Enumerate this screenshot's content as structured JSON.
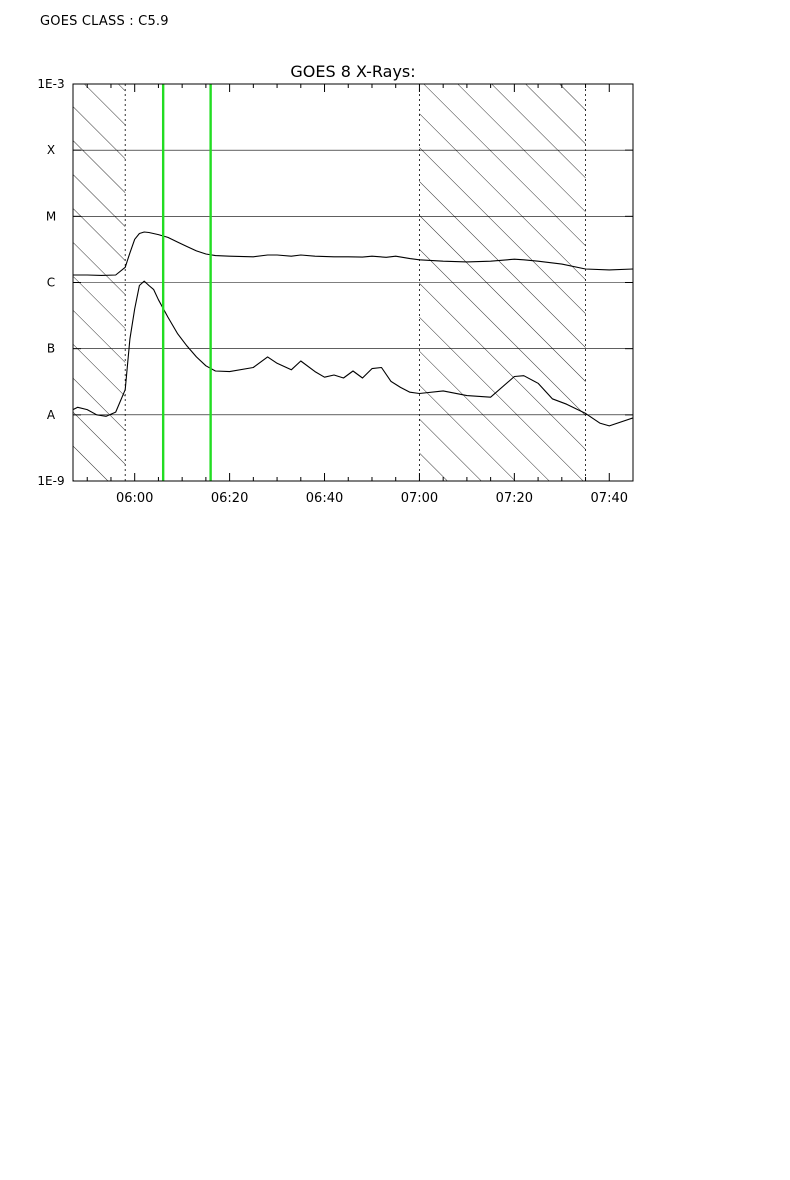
{
  "header": {
    "goes_class": "GOES CLASS : C5.9"
  },
  "chart_data": {
    "type": "line",
    "title": "GOES 8 X-Rays:",
    "xlabel": "",
    "ylabel": "",
    "y_scale": "log",
    "ylim": [
      1e-09,
      0.001
    ],
    "xlim": [
      "05:47",
      "07:45"
    ],
    "x_tick_labels": [
      "06:00",
      "06:20",
      "06:40",
      "07:00",
      "07:20",
      "07:40"
    ],
    "x_ticks_minutes": [
      0,
      20,
      40,
      60,
      80,
      100
    ],
    "y_tick_labels": [
      {
        "label": "1E-3",
        "value": 0.001
      },
      {
        "label": "X",
        "value": 0.0001
      },
      {
        "label": "M",
        "value": 1e-05
      },
      {
        "label": "C",
        "value": 1e-06
      },
      {
        "label": "B",
        "value": 1e-07
      },
      {
        "label": "A",
        "value": 1e-08
      },
      {
        "label": "1E-9",
        "value": 1e-09
      }
    ],
    "grid_levels": [
      0.0001,
      1e-05,
      1e-06,
      1e-07,
      1e-08
    ],
    "hatched_intervals": [
      [
        "05:47",
        "05:58"
      ],
      [
        "07:00",
        "07:35"
      ]
    ],
    "event_markers": {
      "color": "#22dd22",
      "times": [
        "06:06",
        "06:16"
      ]
    },
    "series": [
      {
        "x": [
          "05:47",
          "05:50",
          "05:53",
          "05:56",
          "05:58",
          "05:59",
          "06:00",
          "06:01",
          "06:02",
          "06:03",
          "06:05",
          "06:07",
          "06:09",
          "06:11",
          "06:13",
          "06:15",
          "06:17",
          "06:20",
          "06:25",
          "06:28",
          "06:30",
          "06:33",
          "06:35",
          "06:38",
          "06:42",
          "06:45",
          "06:48",
          "06:50",
          "06:53",
          "06:55",
          "06:58",
          "07:00",
          "07:05",
          "07:10",
          "07:15",
          "07:20",
          "07:22",
          "07:25",
          "07:30",
          "07:35",
          "07:40",
          "07:45"
        ],
        "values": [
          1.3e-06,
          1.3e-06,
          1.28e-06,
          1.3e-06,
          1.7e-06,
          2.8e-06,
          4.5e-06,
          5.5e-06,
          5.8e-06,
          5.7e-06,
          5.3e-06,
          4.8e-06,
          4.1e-06,
          3.5e-06,
          3e-06,
          2.7e-06,
          2.55e-06,
          2.5e-06,
          2.45e-06,
          2.6e-06,
          2.6e-06,
          2.5e-06,
          2.6e-06,
          2.5e-06,
          2.45e-06,
          2.45e-06,
          2.42e-06,
          2.5e-06,
          2.4e-06,
          2.5e-06,
          2.3e-06,
          2.2e-06,
          2.1e-06,
          2.05e-06,
          2.1e-06,
          2.25e-06,
          2.2e-06,
          2.1e-06,
          1.9e-06,
          1.6e-06,
          1.55e-06,
          1.6e-06
        ]
      },
      {
        "x": [
          "05:47",
          "05:48",
          "05:50",
          "05:52",
          "05:54",
          "05:56",
          "05:58",
          "05:59",
          "06:00",
          "06:01",
          "06:02",
          "06:03",
          "06:04",
          "06:05",
          "06:07",
          "06:09",
          "06:11",
          "06:13",
          "06:15",
          "06:17",
          "06:20",
          "06:25",
          "06:28",
          "06:30",
          "06:33",
          "06:35",
          "06:38",
          "06:40",
          "06:42",
          "06:44",
          "06:46",
          "06:48",
          "06:50",
          "06:52",
          "06:54",
          "06:56",
          "06:58",
          "07:00",
          "07:05",
          "07:10",
          "07:15",
          "07:20",
          "07:22",
          "07:25",
          "07:28",
          "07:31",
          "07:35",
          "07:38",
          "07:40",
          "07:45"
        ],
        "values": [
          1.2e-08,
          1.3e-08,
          1.2e-08,
          1e-08,
          9.5e-09,
          1.1e-08,
          2.4e-08,
          1.4e-07,
          4e-07,
          9e-07,
          1.05e-06,
          9e-07,
          7.8e-07,
          5.5e-07,
          3e-07,
          1.7e-07,
          1.1e-07,
          7.5e-08,
          5.5e-08,
          4.6e-08,
          4.5e-08,
          5.2e-08,
          7.5e-08,
          6e-08,
          4.8e-08,
          6.5e-08,
          4.5e-08,
          3.7e-08,
          4e-08,
          3.6e-08,
          4.6e-08,
          3.6e-08,
          5e-08,
          5.2e-08,
          3.2e-08,
          2.6e-08,
          2.2e-08,
          2.1e-08,
          2.3e-08,
          1.95e-08,
          1.85e-08,
          3.8e-08,
          3.9e-08,
          3e-08,
          1.75e-08,
          1.45e-08,
          1.05e-08,
          7.5e-09,
          6.8e-09,
          9e-09
        ]
      }
    ]
  }
}
